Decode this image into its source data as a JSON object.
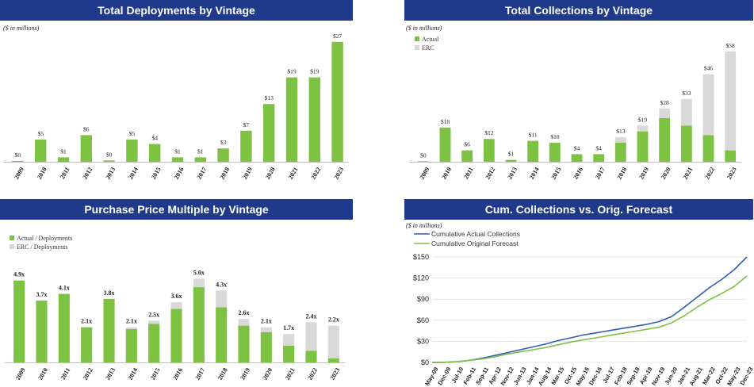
{
  "colors": {
    "green": "#7dc242",
    "gray": "#d9d9d9",
    "blue": "#2f5fb3",
    "header": "#1f3a8a"
  },
  "chart_data": [
    {
      "id": "deployments",
      "type": "bar",
      "title": "Total Deployments by Vintage",
      "subtitle": "($ in millions)",
      "categories": [
        "2009",
        "2010",
        "2011",
        "2012",
        "2013",
        "2014",
        "2015",
        "2016",
        "2017",
        "2018",
        "2019",
        "2020",
        "2021",
        "2022",
        "2023"
      ],
      "values": [
        0.2,
        5,
        1,
        6,
        0.3,
        5,
        4,
        1,
        1,
        3,
        7,
        13,
        19,
        19,
        27
      ],
      "labels": [
        "$0",
        "$5",
        "$1",
        "$6",
        "$0",
        "$5",
        "$4",
        "$1",
        "$1",
        "$3",
        "$7",
        "$13",
        "$19",
        "$19",
        "$27"
      ],
      "ylim": [
        0,
        30
      ]
    },
    {
      "id": "collections",
      "type": "bar",
      "stacked": true,
      "title": "Total Collections by Vintage",
      "subtitle": "($ in millions)",
      "legend": [
        "Actual",
        "ERC"
      ],
      "categories": [
        "2009",
        "2010",
        "2011",
        "2012",
        "2013",
        "2014",
        "2015",
        "2016",
        "2017",
        "2018",
        "2019",
        "2020",
        "2021",
        "2022",
        "2023"
      ],
      "series": [
        {
          "name": "Actual",
          "values": [
            0.3,
            18,
            6,
            12,
            1,
            11,
            10,
            4,
            4,
            10,
            16,
            23,
            19,
            14,
            6
          ]
        },
        {
          "name": "ERC",
          "values": [
            0,
            0,
            0,
            0,
            0,
            0,
            0,
            0,
            0,
            3,
            3,
            5,
            14,
            32,
            52
          ]
        }
      ],
      "labels": [
        "$0",
        "$18",
        "$6",
        "$12",
        "$1",
        "$11",
        "$10",
        "$4",
        "$4",
        "$13",
        "$19",
        "$28",
        "$33",
        "$46",
        "$58"
      ],
      "ylim": [
        0,
        60
      ]
    },
    {
      "id": "multiple",
      "type": "bar",
      "stacked": true,
      "title": "Purchase Price Multiple by Vintage",
      "legend": [
        "Actual / Deployments",
        "ERC / Deployments"
      ],
      "categories": [
        "2009",
        "2010",
        "2011",
        "2012",
        "2013",
        "2014",
        "2015",
        "2016",
        "2017",
        "2018",
        "2019",
        "2020",
        "2021",
        "2022",
        "2023"
      ],
      "series": [
        {
          "name": "Actual / Deployments",
          "values": [
            4.9,
            3.7,
            4.1,
            2.1,
            3.8,
            2.0,
            2.3,
            3.2,
            4.5,
            3.3,
            2.2,
            1.8,
            1.0,
            0.7,
            0.25
          ]
        },
        {
          "name": "ERC / Deployments",
          "values": [
            0,
            0,
            0,
            0,
            0,
            0.1,
            0.2,
            0.4,
            0.5,
            1.0,
            0.4,
            0.3,
            0.7,
            1.7,
            1.95
          ]
        }
      ],
      "labels": [
        "4.9x",
        "3.7x",
        "4.1x",
        "2.1x",
        "3.8x",
        "2.1x",
        "2.5x",
        "3.6x",
        "5.0x",
        "4.3x",
        "2.6x",
        "2.1x",
        "1.7x",
        "2.4x",
        "2.2x"
      ],
      "ylim": [
        0,
        5.5
      ]
    },
    {
      "id": "cumulative",
      "type": "line",
      "title": "Cum. Collections vs. Orig. Forecast",
      "subtitle": "($ in millions)",
      "legend": [
        "Cumulative Actual Collections",
        "Cumulative Original Forecast"
      ],
      "x": [
        "May-09",
        "Dec-09",
        "Jul-10",
        "Feb-11",
        "Sep-11",
        "Apr-12",
        "Nov-12",
        "Jun-13",
        "Jan-14",
        "Aug-14",
        "Mar-15",
        "Oct-15",
        "May-16",
        "Dec-16",
        "Jul-17",
        "Feb-18",
        "Sep-18",
        "Apr-19",
        "Nov-19",
        "Jun-20",
        "Jan-21",
        "Aug-21",
        "Mar-22",
        "Oct-22",
        "May-23",
        "Dec-23"
      ],
      "yticks": [
        "$0",
        "$30",
        "$60",
        "$90",
        "$120",
        "$150"
      ],
      "ylim": [
        0,
        150
      ],
      "series": [
        {
          "name": "Cumulative Actual Collections",
          "values": [
            0,
            0.2,
            1,
            3,
            6,
            10,
            14,
            18,
            22,
            26,
            31,
            35,
            39,
            42,
            45,
            48,
            51,
            54,
            58,
            65,
            78,
            92,
            106,
            118,
            132,
            150
          ]
        },
        {
          "name": "Cumulative Original Forecast",
          "values": [
            0,
            0.2,
            1,
            3,
            5,
            8,
            12,
            15,
            18,
            21,
            25,
            29,
            32,
            35,
            38,
            41,
            44,
            47,
            50,
            56,
            66,
            78,
            89,
            98,
            108,
            123
          ]
        }
      ]
    }
  ]
}
